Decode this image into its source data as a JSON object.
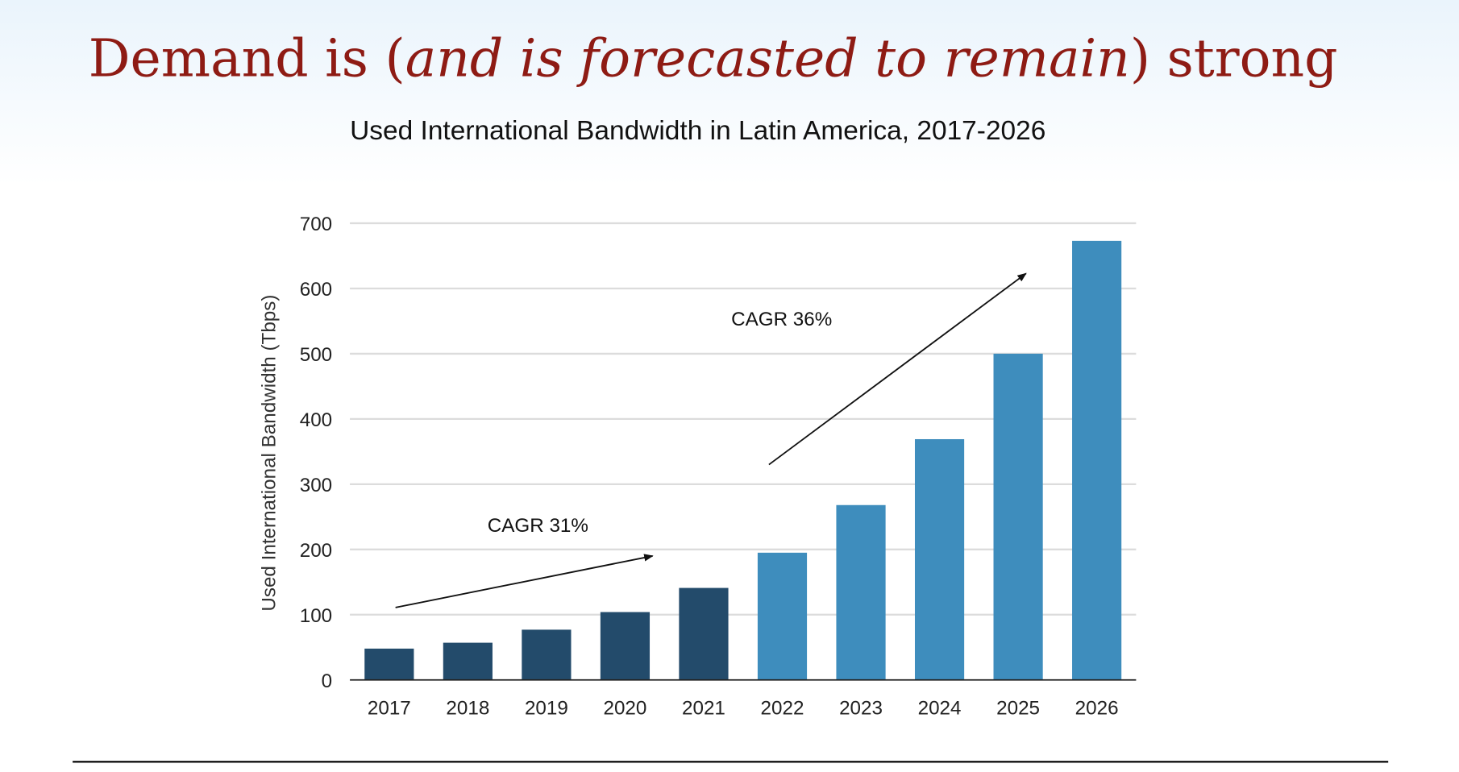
{
  "slide": {
    "title_parts": [
      {
        "text": "Demand is (",
        "italic": false
      },
      {
        "text": "and is forecasted to remain",
        "italic": true
      },
      {
        "text": ") strong",
        "italic": false
      }
    ]
  },
  "chart_data": {
    "type": "bar",
    "title": "Used International Bandwidth in Latin America, 2017-2026",
    "xlabel": "",
    "ylabel": "Used International Bandwidth (Tbps)",
    "ylim": [
      0,
      700
    ],
    "yticks": [
      0,
      100,
      200,
      300,
      400,
      500,
      600,
      700
    ],
    "grid": true,
    "categories": [
      "2017",
      "2018",
      "2019",
      "2020",
      "2021",
      "2022",
      "2023",
      "2024",
      "2025",
      "2026"
    ],
    "values": [
      48,
      57,
      77,
      104,
      141,
      195,
      268,
      369,
      500,
      673
    ],
    "bar_colors": [
      "#234b6b",
      "#234b6b",
      "#234b6b",
      "#234b6b",
      "#234b6b",
      "#3e8dbd",
      "#3e8dbd",
      "#3e8dbd",
      "#3e8dbd",
      "#3e8dbd"
    ],
    "annotations": [
      {
        "text": "CAGR 31%",
        "label_at": [
          2018.25,
          227
        ],
        "arrow_from": [
          2017.08,
          111
        ],
        "arrow_to": [
          2020.35,
          190
        ]
      },
      {
        "text": "CAGR 36%",
        "label_at": [
          2021.35,
          543
        ],
        "arrow_from": [
          2021.83,
          330
        ],
        "arrow_to": [
          2025.1,
          623
        ]
      }
    ]
  }
}
